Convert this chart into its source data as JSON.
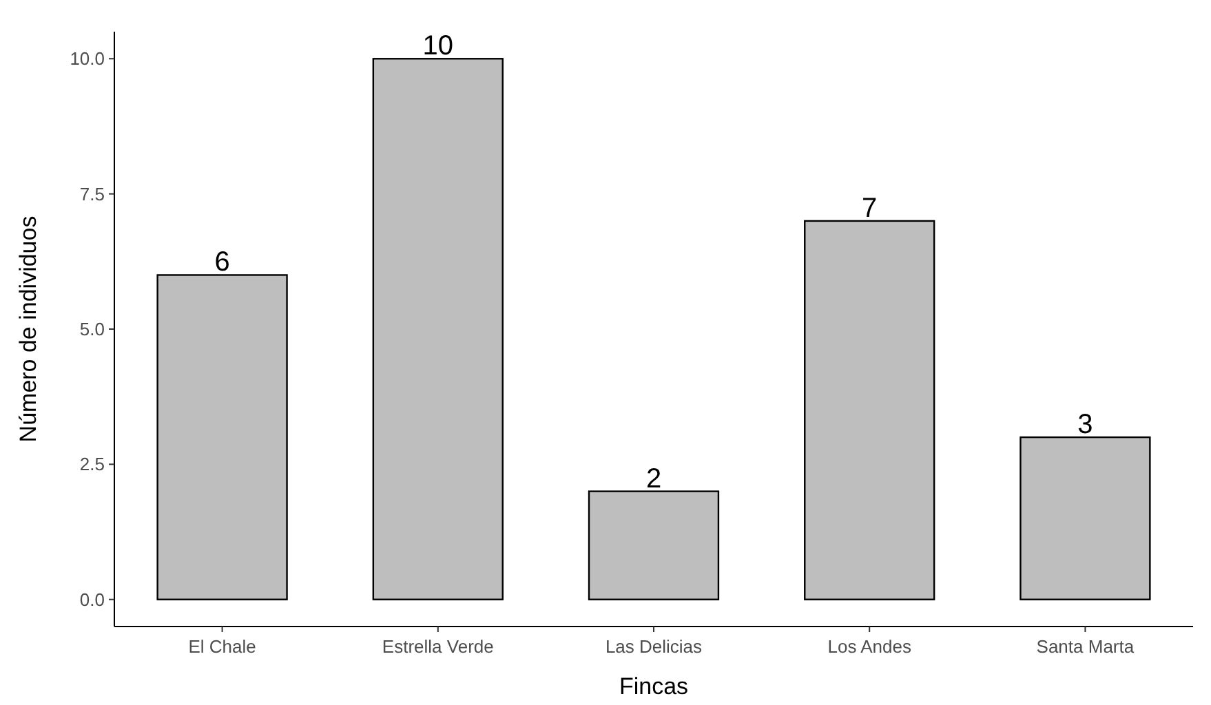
{
  "chart_data": {
    "type": "bar",
    "xlabel": "Fincas",
    "ylabel": "Número de individuos",
    "categories": [
      "El Chale",
      "Estrella Verde",
      "Las Delicias",
      "Los Andes",
      "Santa Marta"
    ],
    "values": [
      6,
      10,
      2,
      7,
      3
    ],
    "color": "#bebebe",
    "data_labels": true,
    "ylim": [
      -0.5,
      10.5
    ],
    "yticks": [
      {
        "value": 0,
        "label": "0.0"
      },
      {
        "value": 2.5,
        "label": "2.5"
      },
      {
        "value": 5,
        "label": "5.0"
      },
      {
        "value": 7.5,
        "label": "7.5"
      },
      {
        "value": 10,
        "label": "10.0"
      }
    ]
  }
}
